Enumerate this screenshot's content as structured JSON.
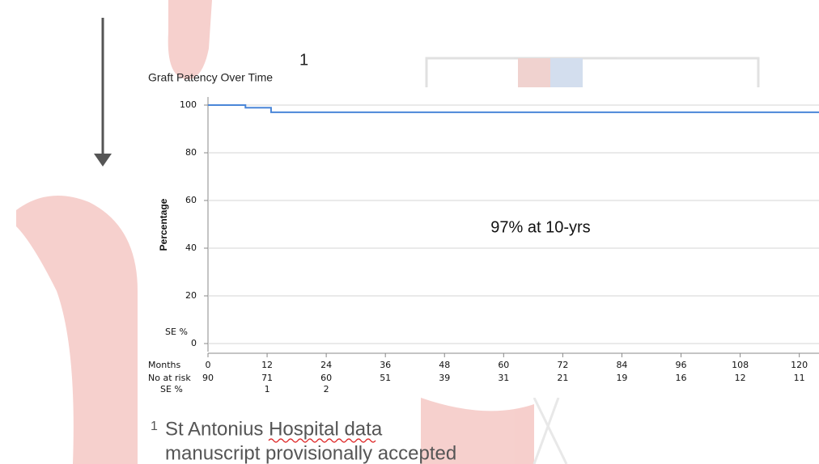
{
  "chart_data": {
    "type": "line",
    "title": "Graft Patency Over Time",
    "title_note": "1",
    "ylabel": "Percentage",
    "axis_note": "SE %",
    "annotation": "97% at 10-yrs",
    "xlim": [
      0,
      124
    ],
    "xticks": [
      0,
      12,
      24,
      36,
      48,
      60,
      72,
      84,
      96,
      108,
      120
    ],
    "xlabel_row": "Months",
    "ylim": [
      0,
      100
    ],
    "yticks": [
      0,
      20,
      40,
      60,
      80,
      100
    ],
    "grid": true,
    "series": [
      {
        "color": "#4a86d8",
        "x": [
          0,
          7.6,
          7.6,
          12.8,
          12.8,
          124
        ],
        "values": [
          100,
          100,
          98.9,
          98.9,
          97,
          97
        ]
      }
    ],
    "risk_table": {
      "label": "No at risk",
      "values": [
        90,
        71,
        60,
        51,
        39,
        31,
        21,
        19,
        16,
        12,
        11
      ]
    },
    "se_row": {
      "label": "SE %",
      "values": [
        null,
        1,
        2,
        null,
        null,
        null,
        null,
        null,
        null,
        null,
        null
      ]
    }
  },
  "footnote": {
    "marker": "1",
    "lines": [
      "St Antonius Hospital data",
      "manuscript provisionally accepted"
    ]
  }
}
